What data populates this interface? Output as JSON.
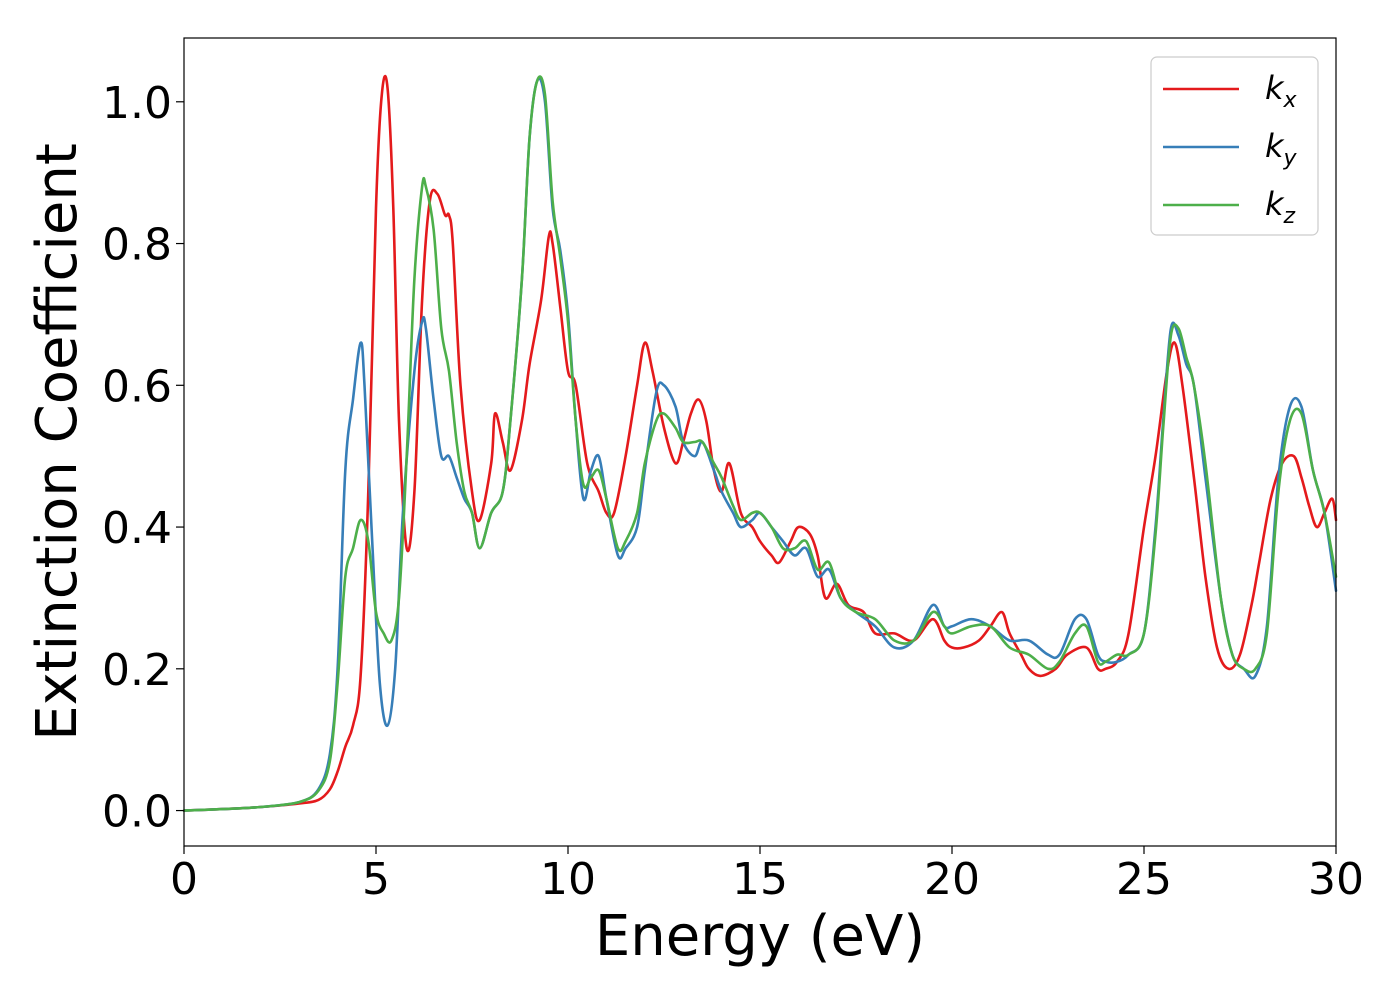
{
  "chart_data": {
    "type": "line",
    "xlabel": "Energy (eV)",
    "ylabel": "Extinction Coefficient",
    "xlim": [
      0,
      30
    ],
    "ylim": [
      -0.05,
      1.09
    ],
    "xticks": [
      0,
      5,
      10,
      15,
      20,
      25,
      30
    ],
    "xtick_labels": [
      "0",
      "5",
      "10",
      "15",
      "20",
      "25",
      "30"
    ],
    "yticks": [
      0.0,
      0.2,
      0.4,
      0.6,
      0.8,
      1.0
    ],
    "ytick_labels": [
      "0.0",
      "0.2",
      "0.4",
      "0.6",
      "0.8",
      "1.0"
    ],
    "grid": false,
    "legend_position": "top-right",
    "series": [
      {
        "name": "k_x",
        "label_base": "k",
        "label_sub": "x",
        "color": "#e41a1c",
        "x": [
          0,
          1,
          2,
          3,
          3.5,
          3.8,
          4.0,
          4.2,
          4.4,
          4.6,
          4.8,
          5.0,
          5.15,
          5.3,
          5.45,
          5.6,
          5.8,
          6.0,
          6.2,
          6.4,
          6.6,
          6.8,
          6.9,
          7.0,
          7.2,
          7.5,
          7.7,
          8.0,
          8.1,
          8.3,
          8.5,
          8.8,
          9.0,
          9.3,
          9.5,
          9.6,
          9.8,
          10.0,
          10.2,
          10.5,
          10.8,
          11.0,
          11.2,
          11.5,
          11.8,
          12.0,
          12.2,
          12.5,
          12.8,
          13.0,
          13.2,
          13.4,
          13.6,
          13.8,
          14.0,
          14.2,
          14.5,
          14.8,
          15.0,
          15.3,
          15.5,
          15.8,
          16.0,
          16.3,
          16.5,
          16.7,
          17.0,
          17.3,
          17.7,
          18.0,
          18.5,
          19.0,
          19.5,
          19.8,
          20.0,
          20.3,
          20.7,
          21.0,
          21.3,
          21.5,
          21.8,
          22.0,
          22.3,
          22.7,
          23.0,
          23.5,
          23.8,
          24.0,
          24.3,
          24.6,
          25.0,
          25.3,
          25.6,
          25.8,
          26.0,
          26.3,
          26.6,
          26.9,
          27.2,
          27.5,
          27.8,
          28.0,
          28.3,
          28.6,
          28.9,
          29.1,
          29.3,
          29.5,
          29.7,
          29.9,
          30.0
        ],
        "y": [
          0.0,
          0.002,
          0.005,
          0.01,
          0.015,
          0.03,
          0.055,
          0.09,
          0.12,
          0.19,
          0.45,
          0.85,
          1.01,
          1.02,
          0.85,
          0.55,
          0.37,
          0.45,
          0.72,
          0.86,
          0.87,
          0.84,
          0.84,
          0.8,
          0.6,
          0.45,
          0.41,
          0.49,
          0.56,
          0.52,
          0.48,
          0.55,
          0.63,
          0.72,
          0.81,
          0.8,
          0.71,
          0.62,
          0.6,
          0.49,
          0.45,
          0.42,
          0.42,
          0.5,
          0.6,
          0.66,
          0.62,
          0.54,
          0.49,
          0.52,
          0.56,
          0.58,
          0.55,
          0.48,
          0.45,
          0.49,
          0.42,
          0.4,
          0.38,
          0.36,
          0.35,
          0.38,
          0.4,
          0.39,
          0.36,
          0.3,
          0.32,
          0.29,
          0.28,
          0.25,
          0.25,
          0.24,
          0.27,
          0.24,
          0.23,
          0.23,
          0.24,
          0.26,
          0.28,
          0.25,
          0.22,
          0.2,
          0.19,
          0.2,
          0.22,
          0.23,
          0.2,
          0.2,
          0.21,
          0.25,
          0.4,
          0.5,
          0.62,
          0.66,
          0.6,
          0.47,
          0.33,
          0.23,
          0.2,
          0.22,
          0.29,
          0.35,
          0.44,
          0.49,
          0.5,
          0.47,
          0.43,
          0.4,
          0.42,
          0.44,
          0.41
        ]
      },
      {
        "name": "k_y",
        "label_base": "k",
        "label_sub": "y",
        "color": "#377eb8",
        "x": [
          0,
          1,
          2,
          3,
          3.5,
          3.8,
          4.0,
          4.2,
          4.4,
          4.6,
          4.7,
          4.9,
          5.1,
          5.3,
          5.5,
          5.7,
          6.0,
          6.2,
          6.3,
          6.5,
          6.7,
          6.9,
          7.1,
          7.3,
          7.5,
          7.7,
          8.0,
          8.3,
          8.5,
          8.8,
          9.0,
          9.2,
          9.4,
          9.6,
          9.8,
          10.0,
          10.2,
          10.4,
          10.6,
          10.8,
          11.0,
          11.3,
          11.5,
          11.8,
          12.0,
          12.3,
          12.5,
          12.8,
          13.0,
          13.3,
          13.5,
          13.8,
          14.0,
          14.3,
          14.5,
          14.8,
          15.0,
          15.3,
          15.6,
          15.9,
          16.2,
          16.5,
          16.8,
          17.1,
          17.5,
          18.0,
          18.5,
          19.0,
          19.5,
          19.8,
          20.0,
          20.5,
          21.0,
          21.5,
          22.0,
          22.5,
          22.8,
          23.2,
          23.5,
          23.8,
          24.0,
          24.3,
          24.6,
          25.0,
          25.3,
          25.5,
          25.7,
          25.9,
          26.1,
          26.3,
          26.6,
          27.0,
          27.3,
          27.6,
          27.9,
          28.2,
          28.5,
          28.8,
          29.1,
          29.4,
          29.7,
          30.0
        ],
        "y": [
          0.0,
          0.002,
          0.005,
          0.012,
          0.03,
          0.08,
          0.2,
          0.48,
          0.58,
          0.66,
          0.6,
          0.38,
          0.18,
          0.12,
          0.2,
          0.42,
          0.62,
          0.69,
          0.68,
          0.58,
          0.5,
          0.5,
          0.47,
          0.44,
          0.42,
          0.37,
          0.42,
          0.45,
          0.55,
          0.75,
          0.95,
          1.03,
          1.0,
          0.85,
          0.79,
          0.7,
          0.55,
          0.44,
          0.48,
          0.5,
          0.44,
          0.36,
          0.37,
          0.4,
          0.48,
          0.59,
          0.6,
          0.57,
          0.52,
          0.5,
          0.52,
          0.48,
          0.45,
          0.42,
          0.4,
          0.41,
          0.42,
          0.4,
          0.38,
          0.36,
          0.37,
          0.33,
          0.34,
          0.3,
          0.28,
          0.26,
          0.23,
          0.24,
          0.29,
          0.26,
          0.26,
          0.27,
          0.26,
          0.24,
          0.24,
          0.22,
          0.22,
          0.27,
          0.27,
          0.22,
          0.21,
          0.21,
          0.22,
          0.25,
          0.4,
          0.55,
          0.68,
          0.67,
          0.63,
          0.6,
          0.47,
          0.3,
          0.22,
          0.2,
          0.19,
          0.26,
          0.47,
          0.57,
          0.57,
          0.48,
          0.42,
          0.31
        ]
      },
      {
        "name": "k_z",
        "label_base": "k",
        "label_sub": "z",
        "color": "#4daf4a",
        "x": [
          0,
          1,
          2,
          3,
          3.5,
          3.8,
          4.0,
          4.2,
          4.4,
          4.6,
          4.8,
          5.0,
          5.2,
          5.4,
          5.6,
          5.8,
          6.0,
          6.2,
          6.3,
          6.5,
          6.7,
          6.9,
          7.1,
          7.3,
          7.5,
          7.7,
          8.0,
          8.3,
          8.5,
          8.8,
          9.0,
          9.2,
          9.4,
          9.6,
          9.8,
          10.0,
          10.2,
          10.4,
          10.6,
          10.8,
          11.0,
          11.3,
          11.5,
          11.8,
          12.0,
          12.3,
          12.5,
          12.8,
          13.0,
          13.3,
          13.5,
          13.8,
          14.0,
          14.3,
          14.5,
          14.8,
          15.0,
          15.3,
          15.6,
          15.9,
          16.2,
          16.5,
          16.8,
          17.1,
          17.5,
          18.0,
          18.5,
          19.0,
          19.5,
          19.8,
          20.0,
          20.5,
          21.0,
          21.5,
          22.0,
          22.5,
          22.8,
          23.2,
          23.5,
          23.8,
          24.0,
          24.3,
          24.6,
          25.0,
          25.3,
          25.5,
          25.7,
          25.9,
          26.1,
          26.3,
          26.6,
          27.0,
          27.3,
          27.6,
          27.9,
          28.2,
          28.5,
          28.8,
          29.1,
          29.4,
          29.7,
          30.0
        ],
        "y": [
          0.0,
          0.002,
          0.005,
          0.012,
          0.028,
          0.07,
          0.18,
          0.33,
          0.37,
          0.41,
          0.38,
          0.28,
          0.25,
          0.24,
          0.3,
          0.5,
          0.75,
          0.88,
          0.88,
          0.82,
          0.68,
          0.62,
          0.52,
          0.45,
          0.42,
          0.37,
          0.42,
          0.45,
          0.55,
          0.75,
          0.95,
          1.03,
          1.01,
          0.86,
          0.78,
          0.69,
          0.55,
          0.46,
          0.47,
          0.48,
          0.44,
          0.37,
          0.38,
          0.42,
          0.49,
          0.55,
          0.56,
          0.54,
          0.52,
          0.52,
          0.52,
          0.49,
          0.47,
          0.43,
          0.41,
          0.42,
          0.42,
          0.4,
          0.37,
          0.37,
          0.38,
          0.34,
          0.35,
          0.3,
          0.28,
          0.27,
          0.24,
          0.24,
          0.28,
          0.26,
          0.25,
          0.26,
          0.26,
          0.23,
          0.22,
          0.2,
          0.21,
          0.25,
          0.26,
          0.21,
          0.21,
          0.22,
          0.22,
          0.25,
          0.39,
          0.54,
          0.67,
          0.68,
          0.64,
          0.6,
          0.49,
          0.3,
          0.22,
          0.2,
          0.2,
          0.25,
          0.45,
          0.55,
          0.56,
          0.48,
          0.42,
          0.33
        ]
      }
    ]
  }
}
